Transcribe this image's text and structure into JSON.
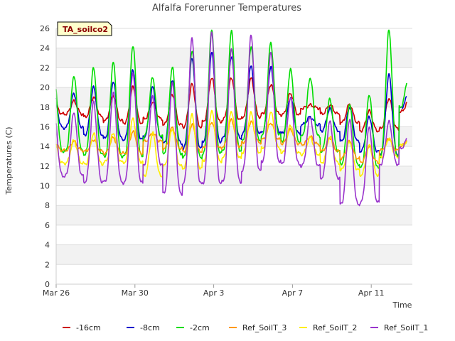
{
  "chart_data": {
    "type": "line",
    "title": "Alfalfa Forerunner Temperatures",
    "xlabel": "Time",
    "ylabel": "Temperatures (C)",
    "ylim": [
      0,
      26
    ],
    "yticks": [
      0,
      2,
      4,
      6,
      8,
      10,
      12,
      14,
      16,
      18,
      20,
      22,
      24,
      26
    ],
    "xlim": [
      "2024-03-26",
      "2024-04-14"
    ],
    "xticks": [
      {
        "date": "2024-03-26",
        "label": "Mar 26"
      },
      {
        "date": "2024-03-30",
        "label": "Mar 30"
      },
      {
        "date": "2024-04-03",
        "label": "Apr 3"
      },
      {
        "date": "2024-04-07",
        "label": "Apr 7"
      },
      {
        "date": "2024-04-11",
        "label": "Apr 11"
      }
    ],
    "grid": "horizontal bands",
    "legend_position": "bottom",
    "tag": "TA_soilco2",
    "x": [
      "2024-03-26",
      "2024-03-27",
      "2024-03-28",
      "2024-03-29",
      "2024-03-30",
      "2024-03-31",
      "2024-04-01",
      "2024-04-02",
      "2024-04-03",
      "2024-04-04",
      "2024-04-05",
      "2024-04-06",
      "2024-04-07",
      "2024-04-08",
      "2024-04-09",
      "2024-04-10",
      "2024-04-11",
      "2024-04-12"
    ],
    "series": [
      {
        "name": "-16cm",
        "color": "#cc0000",
        "min": [
          17.3,
          17.0,
          16.6,
          16.4,
          16.8,
          16.2,
          16.0,
          16.5,
          16.7,
          17.0,
          17.3,
          17.2,
          17.9,
          17.3,
          16.4,
          15.6,
          15.8,
          17.5
        ],
        "max": [
          18.6,
          19.0,
          19.2,
          20.0,
          18.5,
          19.3,
          20.3,
          21.0,
          21.0,
          20.9,
          20.3,
          19.4,
          18.2,
          18.2,
          18.3,
          17.6,
          18.9,
          18.6
        ]
      },
      {
        "name": "-8cm",
        "color": "#0000cc",
        "min": [
          15.9,
          15.2,
          14.8,
          14.7,
          15.0,
          14.3,
          13.8,
          14.5,
          14.8,
          15.3,
          15.5,
          15.3,
          16.2,
          15.6,
          14.5,
          13.5,
          13.2,
          17.9
        ],
        "max": [
          19.4,
          20.0,
          20.6,
          21.8,
          20.0,
          20.8,
          23.0,
          23.5,
          23.2,
          22.2,
          22.0,
          19.0,
          17.0,
          17.8,
          18.0,
          17.0,
          21.3,
          19.3
        ]
      },
      {
        "name": "-2cm",
        "color": "#00dd00",
        "min": [
          13.5,
          13.2,
          13.0,
          13.0,
          15.0,
          13.3,
          12.8,
          13.3,
          13.6,
          14.5,
          15.2,
          14.5,
          15.0,
          13.5,
          12.2,
          11.8,
          13.0,
          18.0
        ],
        "max": [
          21.2,
          22.0,
          22.5,
          24.3,
          21.0,
          22.0,
          23.8,
          25.8,
          25.7,
          24.2,
          24.5,
          21.8,
          21.0,
          18.8,
          18.2,
          19.3,
          25.8,
          21.2
        ]
      },
      {
        "name": "Ref_SoilT_3",
        "color": "#ff9900",
        "min": [
          13.6,
          13.5,
          13.3,
          13.3,
          14.5,
          13.8,
          13.5,
          13.8,
          14.0,
          14.4,
          14.7,
          14.3,
          14.2,
          13.5,
          12.8,
          12.4,
          13.6,
          14.0
        ],
        "max": [
          14.5,
          14.7,
          14.9,
          15.5,
          15.3,
          15.9,
          16.2,
          16.5,
          16.7,
          16.5,
          16.4,
          15.7,
          15.0,
          14.9,
          14.5,
          14.0,
          14.8,
          14.8
        ]
      },
      {
        "name": "Ref_SoilT_2",
        "color": "#ffee00",
        "min": [
          12.3,
          12.2,
          12.4,
          12.4,
          11.0,
          12.0,
          11.8,
          12.5,
          12.8,
          13.4,
          13.8,
          13.3,
          13.2,
          12.3,
          11.6,
          11.1,
          12.9,
          14.1
        ],
        "max": [
          14.6,
          15.3,
          15.4,
          16.8,
          15.4,
          15.8,
          17.2,
          17.6,
          17.6,
          17.4,
          17.5,
          16.2,
          14.9,
          15.0,
          14.5,
          14.1,
          14.8,
          14.4
        ]
      },
      {
        "name": "Ref_SoilT_1",
        "color": "#9933cc",
        "min": [
          11.0,
          10.4,
          10.4,
          10.3,
          12.2,
          9.2,
          10.2,
          10.3,
          10.4,
          11.5,
          12.5,
          12.2,
          12.0,
          10.8,
          8.1,
          8.3,
          12.2,
          13.8
        ],
        "max": [
          17.5,
          18.5,
          19.5,
          21.5,
          19.0,
          20.5,
          25.1,
          25.5,
          24.0,
          25.4,
          23.5,
          19.0,
          17.0,
          16.5,
          16.8,
          16.0,
          16.5,
          15.0
        ]
      }
    ]
  }
}
